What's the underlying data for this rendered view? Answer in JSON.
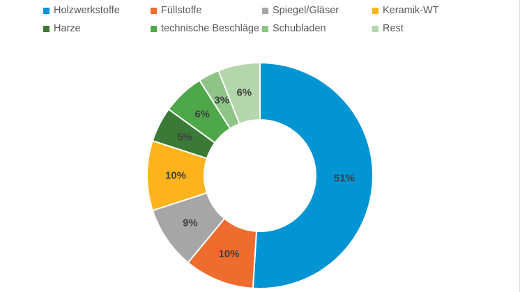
{
  "chart_data": {
    "type": "pie",
    "subtype": "donut",
    "legend_position": "top",
    "categories": [
      "Holzwerkstoffe",
      "Füllstoffe",
      "Spiegel/Gläser",
      "Keramik-WT",
      "Harze",
      "technische Beschläge",
      "Schubladen",
      "Rest"
    ],
    "values": [
      51,
      10,
      9,
      10,
      5,
      6,
      3,
      6
    ],
    "labels": [
      "51%",
      "10%",
      "9%",
      "10%",
      "5%",
      "6%",
      "3%",
      "6%"
    ],
    "colors": [
      "#0394d4",
      "#ee6c2e",
      "#a6a6a6",
      "#fcb31c",
      "#3a7a36",
      "#4ea84a",
      "#8fc487",
      "#b4d6ac"
    ]
  }
}
